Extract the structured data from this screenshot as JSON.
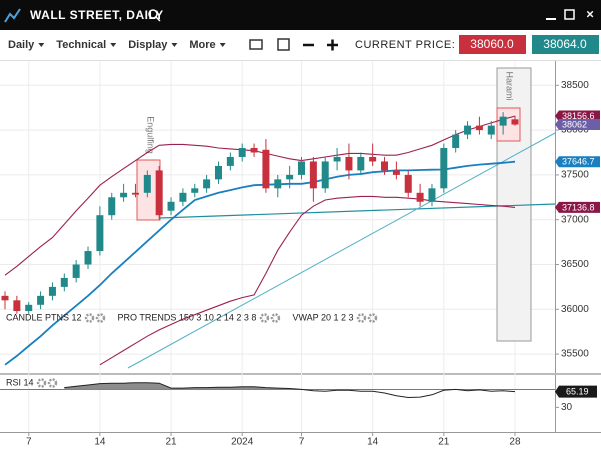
{
  "header": {
    "title": "WALL STREET, DAILY"
  },
  "toolbar": {
    "menus": [
      "Daily",
      "Technical",
      "Display",
      "More"
    ],
    "current_price_label": "CURRENT PRICE:",
    "bid": "38060.0",
    "ask": "38064.0"
  },
  "chart_data": {
    "type": "candlestick",
    "categories": [
      null,
      null,
      "7",
      null,
      null,
      null,
      null,
      null,
      "14",
      null,
      null,
      null,
      null,
      null,
      "21",
      null,
      null,
      null,
      null,
      null,
      "2024",
      null,
      null,
      null,
      null,
      "7",
      null,
      null,
      null,
      null,
      null,
      "14",
      null,
      null,
      null,
      null,
      null,
      "21",
      null,
      null,
      null,
      null,
      null,
      "28"
    ],
    "open": [
      36150,
      36100,
      35980,
      36050,
      36150,
      36250,
      36350,
      36500,
      36650,
      37050,
      37250,
      37300,
      37300,
      37550,
      37100,
      37200,
      37300,
      37350,
      37450,
      37600,
      37700,
      37800,
      37780,
      37350,
      37450,
      37500,
      37650,
      37350,
      37650,
      37700,
      37550,
      37700,
      37650,
      37550,
      37500,
      37300,
      37200,
      37350,
      37800,
      37950,
      38050,
      37950,
      38050,
      38120
    ],
    "high": [
      36200,
      36150,
      36080,
      36200,
      36300,
      36400,
      36550,
      36700,
      37150,
      37300,
      37400,
      37400,
      37550,
      37600,
      37250,
      37350,
      37400,
      37500,
      37650,
      37750,
      37850,
      37850,
      37900,
      37500,
      37600,
      37700,
      37700,
      37700,
      37800,
      37850,
      37750,
      37850,
      37700,
      37650,
      37550,
      37400,
      37400,
      37850,
      38000,
      38100,
      38150,
      38100,
      38200,
      38160
    ],
    "low": [
      36000,
      35950,
      35950,
      36000,
      36100,
      36200,
      36300,
      36450,
      36600,
      37000,
      37200,
      37250,
      37250,
      37000,
      37050,
      37150,
      37250,
      37300,
      37400,
      37550,
      37650,
      37700,
      37300,
      37250,
      37350,
      37450,
      37200,
      37300,
      37550,
      37450,
      37500,
      37600,
      37500,
      37450,
      37250,
      37150,
      37150,
      37300,
      37750,
      37900,
      37950,
      37900,
      37950,
      38050
    ],
    "close": [
      36100,
      35980,
      36050,
      36150,
      36250,
      36350,
      36500,
      36650,
      37050,
      37250,
      37300,
      37280,
      37500,
      37050,
      37200,
      37300,
      37350,
      37450,
      37600,
      37700,
      37800,
      37750,
      37350,
      37450,
      37500,
      37650,
      37350,
      37650,
      37700,
      37550,
      37700,
      37650,
      37550,
      37500,
      37300,
      37200,
      37350,
      37800,
      37950,
      38050,
      38000,
      38050,
      38150,
      38062
    ],
    "up_color": "#22898a",
    "down_color": "#c7303c",
    "series": [
      {
        "name": "upper band",
        "color": "#9b2152",
        "values": [
          36380,
          36480,
          36590,
          36700,
          36800,
          36950,
          37100,
          37240,
          37385,
          37480,
          37570,
          37660,
          37750,
          37830,
          37840,
          37840,
          37830,
          37820,
          37800,
          37790,
          37780,
          37770,
          37740,
          37710,
          37680,
          37660,
          37680,
          37700,
          37720,
          37740,
          37740,
          37730,
          37720,
          37720,
          37750,
          37790,
          37830,
          37890,
          37950,
          38000,
          38040,
          38080,
          38120,
          38156.6
        ]
      },
      {
        "name": "lower band",
        "color": "#9b2152",
        "values": [
          null,
          null,
          null,
          null,
          null,
          null,
          null,
          null,
          35380,
          35460,
          35540,
          35620,
          35700,
          35770,
          35830,
          35890,
          35940,
          35990,
          36040,
          36090,
          36130,
          36160,
          36400,
          36660,
          36860,
          37050,
          37150,
          37220,
          37240,
          37250,
          37260,
          37260,
          37250,
          37250,
          37240,
          37230,
          37210,
          37200,
          37190,
          37180,
          37170,
          37160,
          37150,
          37136.8
        ]
      },
      {
        "name": "trend",
        "color": "#1a7fc0",
        "values": [
          35380,
          35480,
          35590,
          35700,
          35820,
          35930,
          36040,
          36150,
          36270,
          36400,
          36520,
          36640,
          36760,
          36880,
          37000,
          37110,
          37220,
          37260,
          37300,
          37330,
          37360,
          37385,
          37390,
          37395,
          37400,
          37400,
          37420,
          37450,
          37480,
          37500,
          37510,
          37530,
          37540,
          37550,
          37550,
          37555,
          37558,
          37560,
          37580,
          37600,
          37615,
          37625,
          37635,
          37646.7
        ]
      }
    ],
    "price_labels": [
      {
        "value": 38156.6,
        "color": "#8a1746"
      },
      {
        "value": 38062,
        "color": "#6b5fa8"
      },
      {
        "value": 37646.7,
        "color": "#1a7fc0"
      },
      {
        "value": 37136.8,
        "color": "#8a1746"
      }
    ],
    "ylim": [
      35300,
      38760
    ],
    "yticks": [
      35500,
      36000,
      36500,
      37000,
      37500,
      38000,
      38500
    ],
    "grid": true,
    "annotations": [
      "Engulfing",
      "Harami"
    ],
    "indicators": [
      "CANDLE PTNS 12",
      "PRO TRENDS 150 3 10 2 14 2 3 8",
      "VWAP 20 1 2 3"
    ],
    "rsi": {
      "name": "RSI 14",
      "color": "#222222",
      "values": [
        null,
        null,
        null,
        null,
        null,
        74,
        77,
        80,
        83,
        84,
        84,
        85,
        85,
        84,
        73,
        73,
        74,
        74,
        75,
        75,
        76,
        76,
        74,
        73,
        72,
        70,
        67,
        66,
        68,
        68,
        66,
        66,
        62,
        56,
        52,
        53,
        58,
        68,
        70,
        67,
        69,
        66,
        67,
        65.19
      ],
      "current": 65.19,
      "level": 70,
      "ylim": [
        -25,
        100
      ],
      "yticks": [
        30
      ]
    }
  }
}
